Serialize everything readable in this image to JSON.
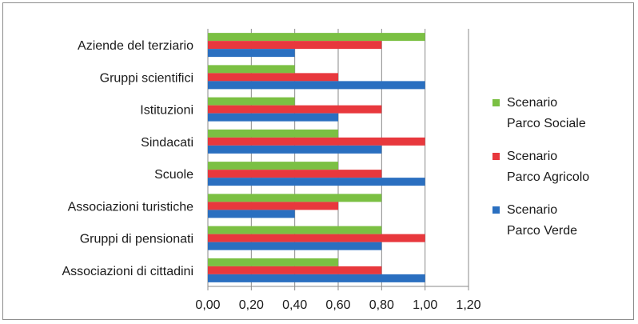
{
  "chart_data": {
    "type": "bar",
    "orientation": "horizontal",
    "categories": [
      "Aziende del terziario",
      "Gruppi scientifici",
      "Istituzioni",
      "Sindacati",
      "Scuole",
      "Associazioni turistiche",
      "Gruppi di pensionati",
      "Associazioni di cittadini"
    ],
    "series": [
      {
        "name_lines": [
          "Scenario",
          "Parco Sociale"
        ],
        "color": "#7bc043",
        "values": [
          1.0,
          0.4,
          0.4,
          0.6,
          0.6,
          0.8,
          0.8,
          0.6
        ]
      },
      {
        "name_lines": [
          "Scenario",
          "Parco Agricolo"
        ],
        "color": "#e8383d",
        "values": [
          0.8,
          0.6,
          0.8,
          1.0,
          0.8,
          0.6,
          1.0,
          0.8
        ]
      },
      {
        "name_lines": [
          "Scenario",
          "Parco Verde"
        ],
        "color": "#2a6fc0",
        "values": [
          0.4,
          1.0,
          0.6,
          0.8,
          1.0,
          0.4,
          0.8,
          1.0
        ]
      }
    ],
    "x_ticks": [
      "0,00",
      "0,20",
      "0,40",
      "0,60",
      "0,80",
      "1,00",
      "1,20"
    ],
    "xlim": [
      0,
      1.2
    ],
    "grid": "vertical",
    "legend_position": "right"
  }
}
